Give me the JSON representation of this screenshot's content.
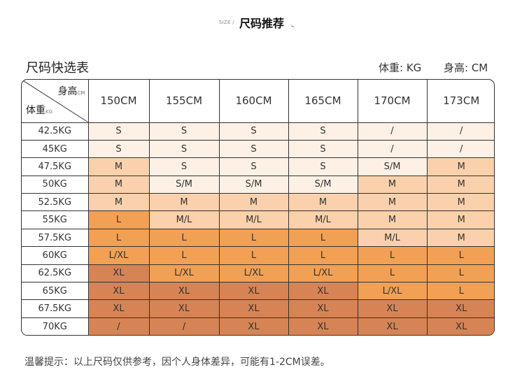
{
  "header": {
    "small_label": "SIZE /",
    "title": "尺码推荐"
  },
  "table_title": "尺码快选表",
  "units": {
    "weight": "体重: KG",
    "height": "身高: CM"
  },
  "corner": {
    "height_label": "身高",
    "height_unit": "CM",
    "weight_label": "体重",
    "weight_unit": "KG"
  },
  "columns": [
    "150CM",
    "155CM",
    "160CM",
    "165CM",
    "170CM",
    "173CM"
  ],
  "level_colors": {
    "l1": "#fdf1e6",
    "l2": "#fad1ac",
    "l3": "#f2a054",
    "l4": "#d68455"
  },
  "rows": [
    {
      "weight": "42.5KG",
      "cells": [
        {
          "v": "S",
          "l": "l1"
        },
        {
          "v": "S",
          "l": "l1"
        },
        {
          "v": "S",
          "l": "l1"
        },
        {
          "v": "S",
          "l": "l1"
        },
        {
          "v": "/",
          "l": "l1"
        },
        {
          "v": "/",
          "l": "l1"
        }
      ]
    },
    {
      "weight": "45KG",
      "cells": [
        {
          "v": "S",
          "l": "l1"
        },
        {
          "v": "S",
          "l": "l1"
        },
        {
          "v": "S",
          "l": "l1"
        },
        {
          "v": "S",
          "l": "l1"
        },
        {
          "v": "/",
          "l": "l1"
        },
        {
          "v": "/",
          "l": "l1"
        }
      ]
    },
    {
      "weight": "47.5KG",
      "cells": [
        {
          "v": "M",
          "l": "l2"
        },
        {
          "v": "S",
          "l": "l1"
        },
        {
          "v": "S",
          "l": "l1"
        },
        {
          "v": "S",
          "l": "l1"
        },
        {
          "v": "S/M",
          "l": "l1"
        },
        {
          "v": "M",
          "l": "l2"
        }
      ]
    },
    {
      "weight": "50KG",
      "cells": [
        {
          "v": "M",
          "l": "l2"
        },
        {
          "v": "S/M",
          "l": "l1"
        },
        {
          "v": "S/M",
          "l": "l1"
        },
        {
          "v": "S/M",
          "l": "l1"
        },
        {
          "v": "M",
          "l": "l2"
        },
        {
          "v": "M",
          "l": "l2"
        }
      ]
    },
    {
      "weight": "52.5KG",
      "cells": [
        {
          "v": "M",
          "l": "l2"
        },
        {
          "v": "M",
          "l": "l2"
        },
        {
          "v": "M",
          "l": "l2"
        },
        {
          "v": "M",
          "l": "l2"
        },
        {
          "v": "M",
          "l": "l2"
        },
        {
          "v": "M",
          "l": "l2"
        }
      ]
    },
    {
      "weight": "55KG",
      "cells": [
        {
          "v": "L",
          "l": "l3"
        },
        {
          "v": "M/L",
          "l": "l2"
        },
        {
          "v": "M/L",
          "l": "l2"
        },
        {
          "v": "M/L",
          "l": "l2"
        },
        {
          "v": "M",
          "l": "l2"
        },
        {
          "v": "M",
          "l": "l2"
        }
      ]
    },
    {
      "weight": "57.5KG",
      "cells": [
        {
          "v": "L",
          "l": "l3"
        },
        {
          "v": "L",
          "l": "l3"
        },
        {
          "v": "L",
          "l": "l3"
        },
        {
          "v": "L",
          "l": "l3"
        },
        {
          "v": "M/L",
          "l": "l2"
        },
        {
          "v": "M",
          "l": "l2"
        }
      ]
    },
    {
      "weight": "60KG",
      "cells": [
        {
          "v": "L/XL",
          "l": "l3"
        },
        {
          "v": "L",
          "l": "l3"
        },
        {
          "v": "L",
          "l": "l3"
        },
        {
          "v": "L",
          "l": "l3"
        },
        {
          "v": "L",
          "l": "l3"
        },
        {
          "v": "L",
          "l": "l3"
        }
      ]
    },
    {
      "weight": "62.5KG",
      "cells": [
        {
          "v": "XL",
          "l": "l4"
        },
        {
          "v": "L/XL",
          "l": "l3"
        },
        {
          "v": "L/XL",
          "l": "l3"
        },
        {
          "v": "L/XL",
          "l": "l3"
        },
        {
          "v": "L",
          "l": "l3"
        },
        {
          "v": "L",
          "l": "l3"
        }
      ]
    },
    {
      "weight": "65KG",
      "cells": [
        {
          "v": "XL",
          "l": "l4"
        },
        {
          "v": "XL",
          "l": "l4"
        },
        {
          "v": "XL",
          "l": "l4"
        },
        {
          "v": "XL",
          "l": "l4"
        },
        {
          "v": "L/XL",
          "l": "l3"
        },
        {
          "v": "L",
          "l": "l3"
        }
      ]
    },
    {
      "weight": "67.5KG",
      "cells": [
        {
          "v": "XL",
          "l": "l4"
        },
        {
          "v": "XL",
          "l": "l4"
        },
        {
          "v": "XL",
          "l": "l4"
        },
        {
          "v": "XL",
          "l": "l4"
        },
        {
          "v": "XL",
          "l": "l4"
        },
        {
          "v": "XL",
          "l": "l4"
        }
      ]
    },
    {
      "weight": "70KG",
      "cells": [
        {
          "v": "/",
          "l": "l4"
        },
        {
          "v": "/",
          "l": "l4"
        },
        {
          "v": "XL",
          "l": "l4"
        },
        {
          "v": "XL",
          "l": "l4"
        },
        {
          "v": "XL",
          "l": "l4"
        },
        {
          "v": "XL",
          "l": "l4"
        }
      ]
    }
  ],
  "note": "温馨提示：以上尺码仅供参考，因个人身体差异，可能有1-2CM误差。"
}
